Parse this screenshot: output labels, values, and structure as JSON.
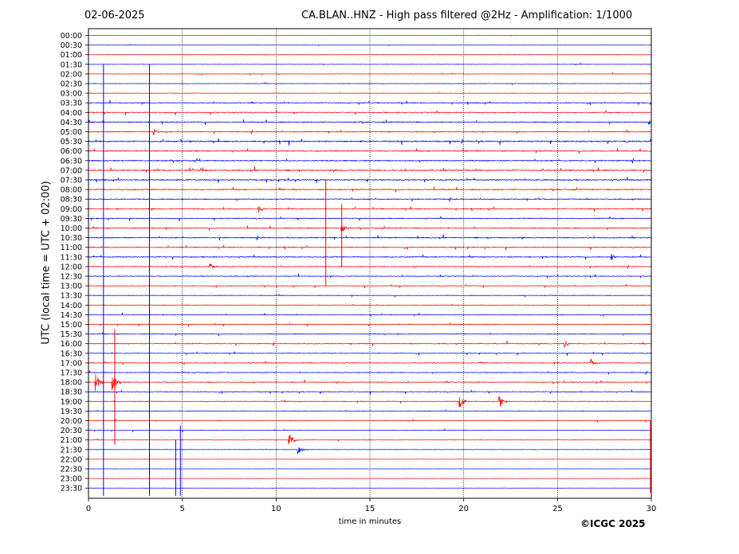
{
  "header": {
    "date": "02-06-2025",
    "title": "CA.BLAN..HNZ - High pass filtered @2Hz - Amplification: 1/1000"
  },
  "footer": {
    "credit": "©ICGC 2025"
  },
  "colors": {
    "trace_a": "#ff0000",
    "trace_b": "#0000ff",
    "axis": "#000000"
  },
  "chart_data": {
    "type": "line",
    "title": "CA.BLAN..HNZ - High pass filtered @2Hz - Amplification: 1/1000",
    "xlabel": "time in minutes",
    "ylabel": "UTC (local time = UTC + 02:00)",
    "xlim": [
      0,
      30
    ],
    "x_ticks": [
      0,
      5,
      10,
      15,
      20,
      25,
      30
    ],
    "vertical_gridlines": [
      5,
      10,
      15,
      20,
      25
    ],
    "grid": "dotted vertical",
    "row_labels": [
      "00:00",
      "00:30",
      "01:00",
      "01:30",
      "02:00",
      "02:30",
      "03:00",
      "03:30",
      "04:00",
      "04:30",
      "05:00",
      "05:30",
      "06:00",
      "06:30",
      "07:00",
      "07:30",
      "08:00",
      "08:30",
      "09:00",
      "09:30",
      "10:00",
      "10:30",
      "11:00",
      "11:30",
      "12:00",
      "12:30",
      "13:00",
      "13:30",
      "14:00",
      "14:30",
      "15:00",
      "15:30",
      "16:00",
      "16:30",
      "17:00",
      "17:30",
      "18:00",
      "18:30",
      "19:00",
      "19:30",
      "20:00",
      "20:30",
      "21:00",
      "21:30",
      "22:00",
      "22:30",
      "23:00",
      "23:30"
    ],
    "row_colors": [
      "red",
      "blue"
    ],
    "trace_style": "seismogram",
    "row_activity": [
      0.3,
      0.3,
      0.4,
      0.5,
      0.5,
      0.6,
      0.6,
      1.0,
      1.0,
      1.2,
      1.1,
      1.5,
      1.2,
      1.3,
      1.4,
      1.3,
      1.2,
      1.1,
      1.2,
      1.0,
      1.1,
      1.2,
      1.1,
      1.1,
      0.9,
      0.9,
      0.8,
      0.7,
      0.7,
      0.7,
      0.8,
      0.9,
      1.0,
      0.8,
      0.9,
      0.9,
      0.9,
      0.9,
      0.8,
      0.8,
      0.6,
      0.6,
      0.6,
      0.4,
      0.2,
      0.2,
      0.2,
      0.2
    ],
    "events": [
      {
        "row": 36,
        "t": 0.4,
        "amp": 6
      },
      {
        "row": 36,
        "t": 1.3,
        "amp": 7
      },
      {
        "row": 38,
        "t": 21.9,
        "amp": 5
      },
      {
        "row": 38,
        "t": 19.8,
        "amp": 4
      },
      {
        "row": 42,
        "t": 10.7,
        "amp": 5
      },
      {
        "row": 43,
        "t": 11.2,
        "amp": 3
      },
      {
        "row": 20,
        "t": 13.5,
        "amp": 4
      },
      {
        "row": 32,
        "t": 25.4,
        "amp": 2.5
      },
      {
        "row": 34,
        "t": 26.8,
        "amp": 2.5
      },
      {
        "row": 18,
        "t": 9.1,
        "amp": 2
      },
      {
        "row": 23,
        "t": 27.9,
        "amp": 2
      },
      {
        "row": 9,
        "t": 29.9,
        "amp": 2.5
      },
      {
        "row": 10,
        "t": 3.5,
        "amp": 2
      },
      {
        "row": 24,
        "t": 6.5,
        "amp": 2
      }
    ],
    "vertical_spikes": [
      {
        "t": 0.8,
        "row_start": 3,
        "row_end": 47.8,
        "color": "blue"
      },
      {
        "t": 3.25,
        "row_start": 3,
        "row_end": 47.8,
        "color": "blue"
      },
      {
        "t": 12.65,
        "row_start": 15,
        "row_end": 26,
        "color": "red"
      },
      {
        "t": 13.5,
        "row_start": 17.5,
        "row_end": 24,
        "color": "red"
      },
      {
        "t": 1.4,
        "row_start": 30.5,
        "row_end": 42.5,
        "color": "red"
      },
      {
        "t": 4.65,
        "row_start": 42,
        "row_end": 47.8,
        "color": "blue"
      },
      {
        "t": 4.9,
        "row_start": 40.5,
        "row_end": 47.8,
        "color": "blue"
      },
      {
        "t": 29.95,
        "row_start": 40,
        "row_end": 47.5,
        "color": "red"
      }
    ]
  }
}
